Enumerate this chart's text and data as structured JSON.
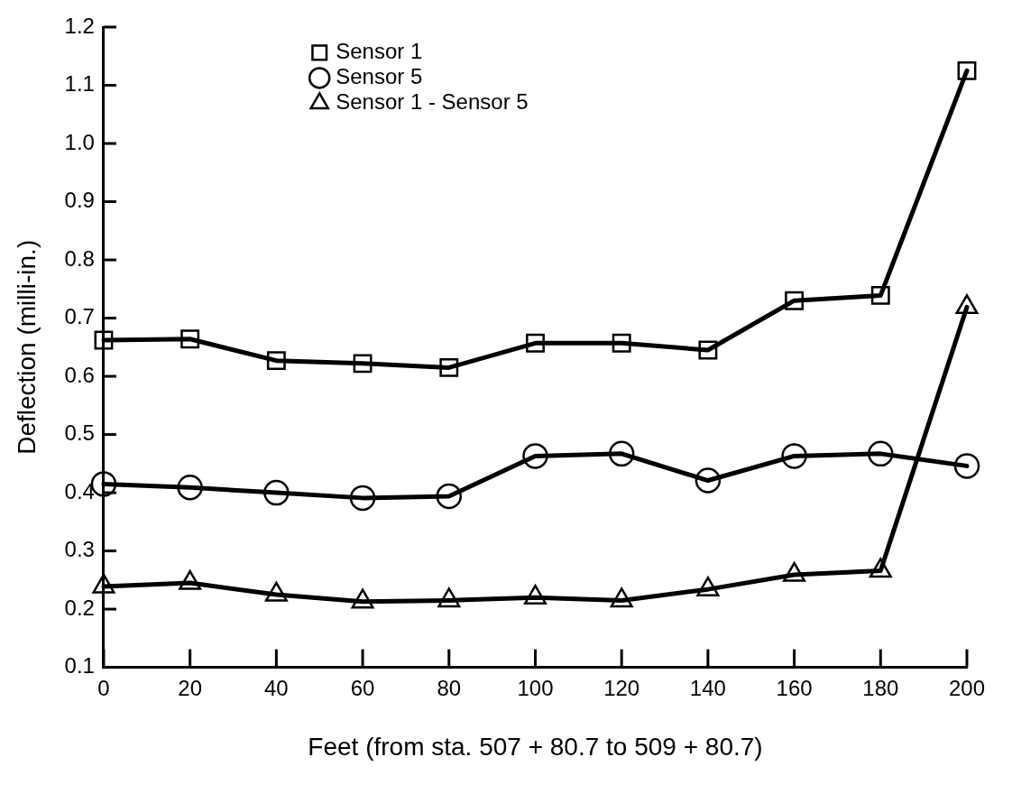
{
  "chart_data": {
    "type": "line",
    "xlabel": "Feet (from sta. 507 + 80.7 to 509 + 80.7)",
    "ylabel": "Deflection (milli-in.)",
    "x": [
      0,
      20,
      40,
      60,
      80,
      100,
      120,
      140,
      160,
      180,
      200
    ],
    "xlim": [
      0,
      200
    ],
    "xticks": [
      0,
      20,
      40,
      60,
      80,
      100,
      120,
      140,
      160,
      180,
      200
    ],
    "ylim": [
      0.1,
      1.2
    ],
    "yticks": [
      0.1,
      0.2,
      0.3,
      0.4,
      0.5,
      0.6,
      0.7,
      0.8,
      0.9,
      {
        "value": 1,
        "label": "1.0"
      },
      1.1,
      1.2
    ],
    "grid": false,
    "legend": "top left",
    "line_style": "solid",
    "series": [
      {
        "name": "Sensor 1",
        "color": "#000000",
        "marker": "square",
        "values": [
          0.662,
          0.664,
          0.627,
          0.622,
          0.615,
          0.657,
          0.657,
          0.645,
          0.73,
          0.739,
          1.125
        ]
      },
      {
        "name": "Sensor 5",
        "color": "#000000",
        "marker": "circle",
        "values": [
          0.415,
          0.409,
          0.4,
          0.391,
          0.394,
          0.463,
          0.467,
          0.421,
          0.463,
          0.467,
          0.446
        ]
      },
      {
        "name": "Sensor 1 - Sensor 5",
        "color": "#000000",
        "marker": "triangle",
        "values": [
          0.239,
          0.245,
          0.225,
          0.213,
          0.215,
          0.22,
          0.215,
          0.234,
          0.259,
          0.266,
          0.719
        ]
      }
    ]
  }
}
